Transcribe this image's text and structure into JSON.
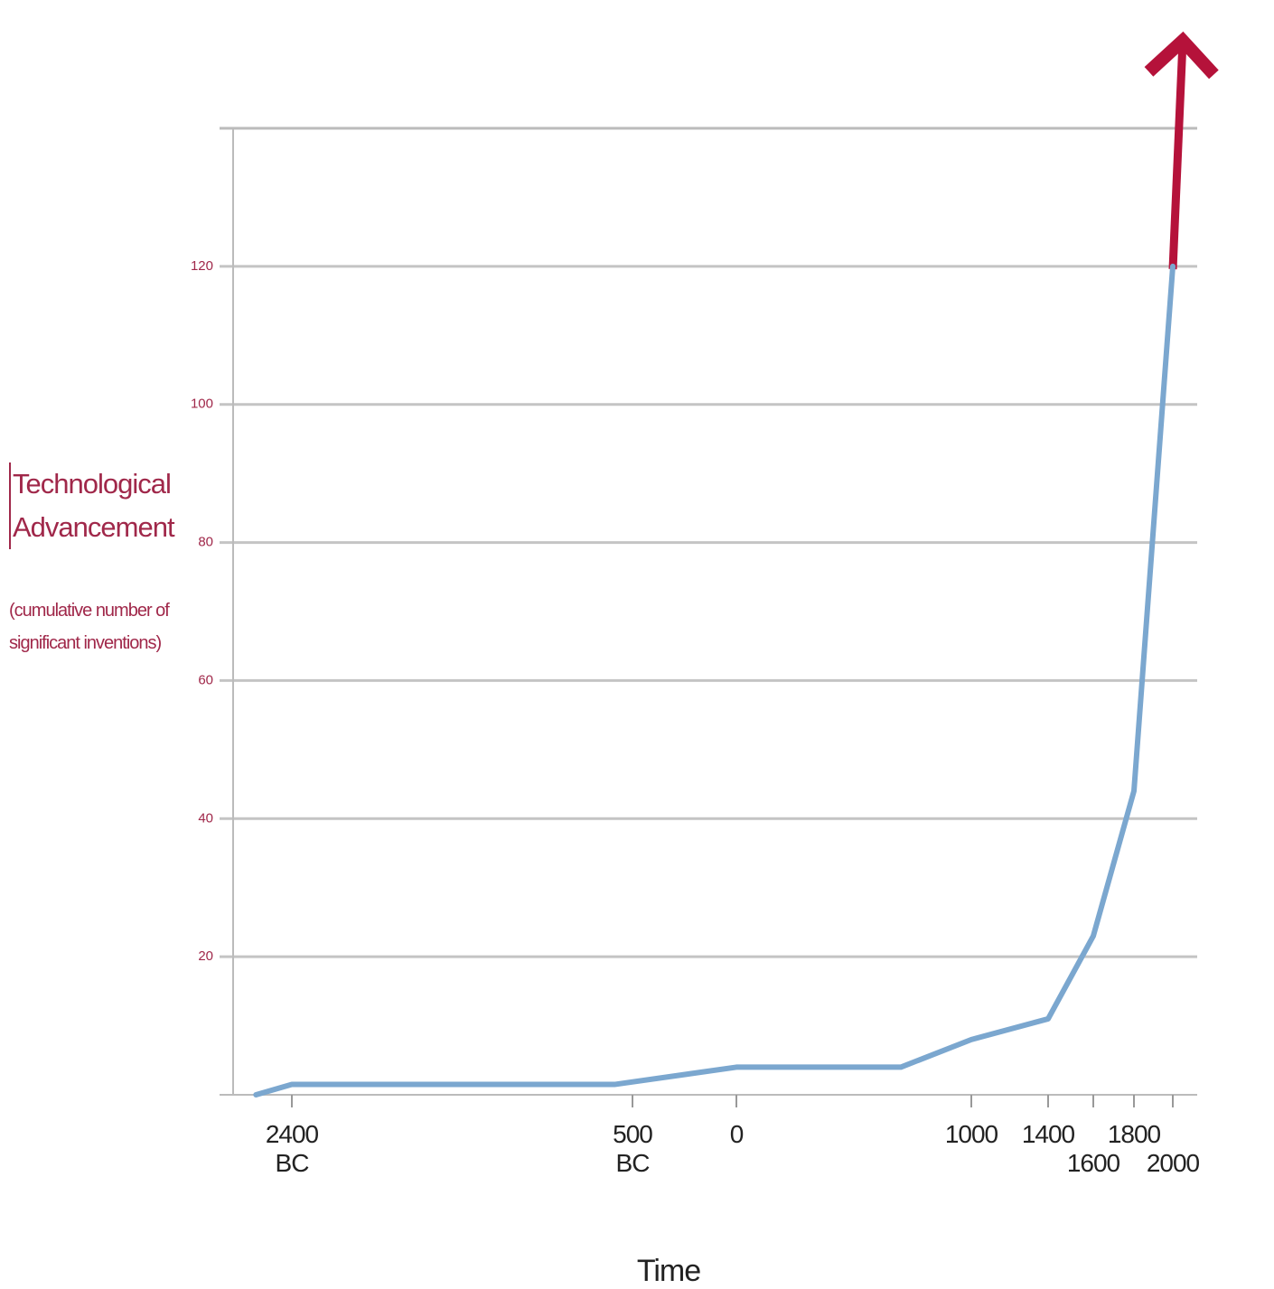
{
  "chart_data": {
    "type": "line",
    "y_label": "Technological Advancement",
    "y_sublabel": "(cumulative number of significant inventions)",
    "x_label": "Time",
    "x": [
      -2600,
      -2400,
      -600,
      0,
      700,
      1000,
      1400,
      1600,
      1800,
      2000
    ],
    "series": [
      {
        "color": "#7ba7cf",
        "values": [
          0,
          1.5,
          1.5,
          4,
          4,
          8,
          11,
          23,
          44,
          120
        ]
      }
    ],
    "xticks": [
      {
        "value": -2400,
        "label": "2400 BC"
      },
      {
        "value": -500,
        "label": "500 BC"
      },
      0,
      1000,
      1400,
      1600,
      1800,
      2000
    ],
    "ylim": [
      0,
      140
    ],
    "yticks": [
      20,
      40,
      60,
      80,
      100,
      120
    ],
    "grid": true
  }
}
